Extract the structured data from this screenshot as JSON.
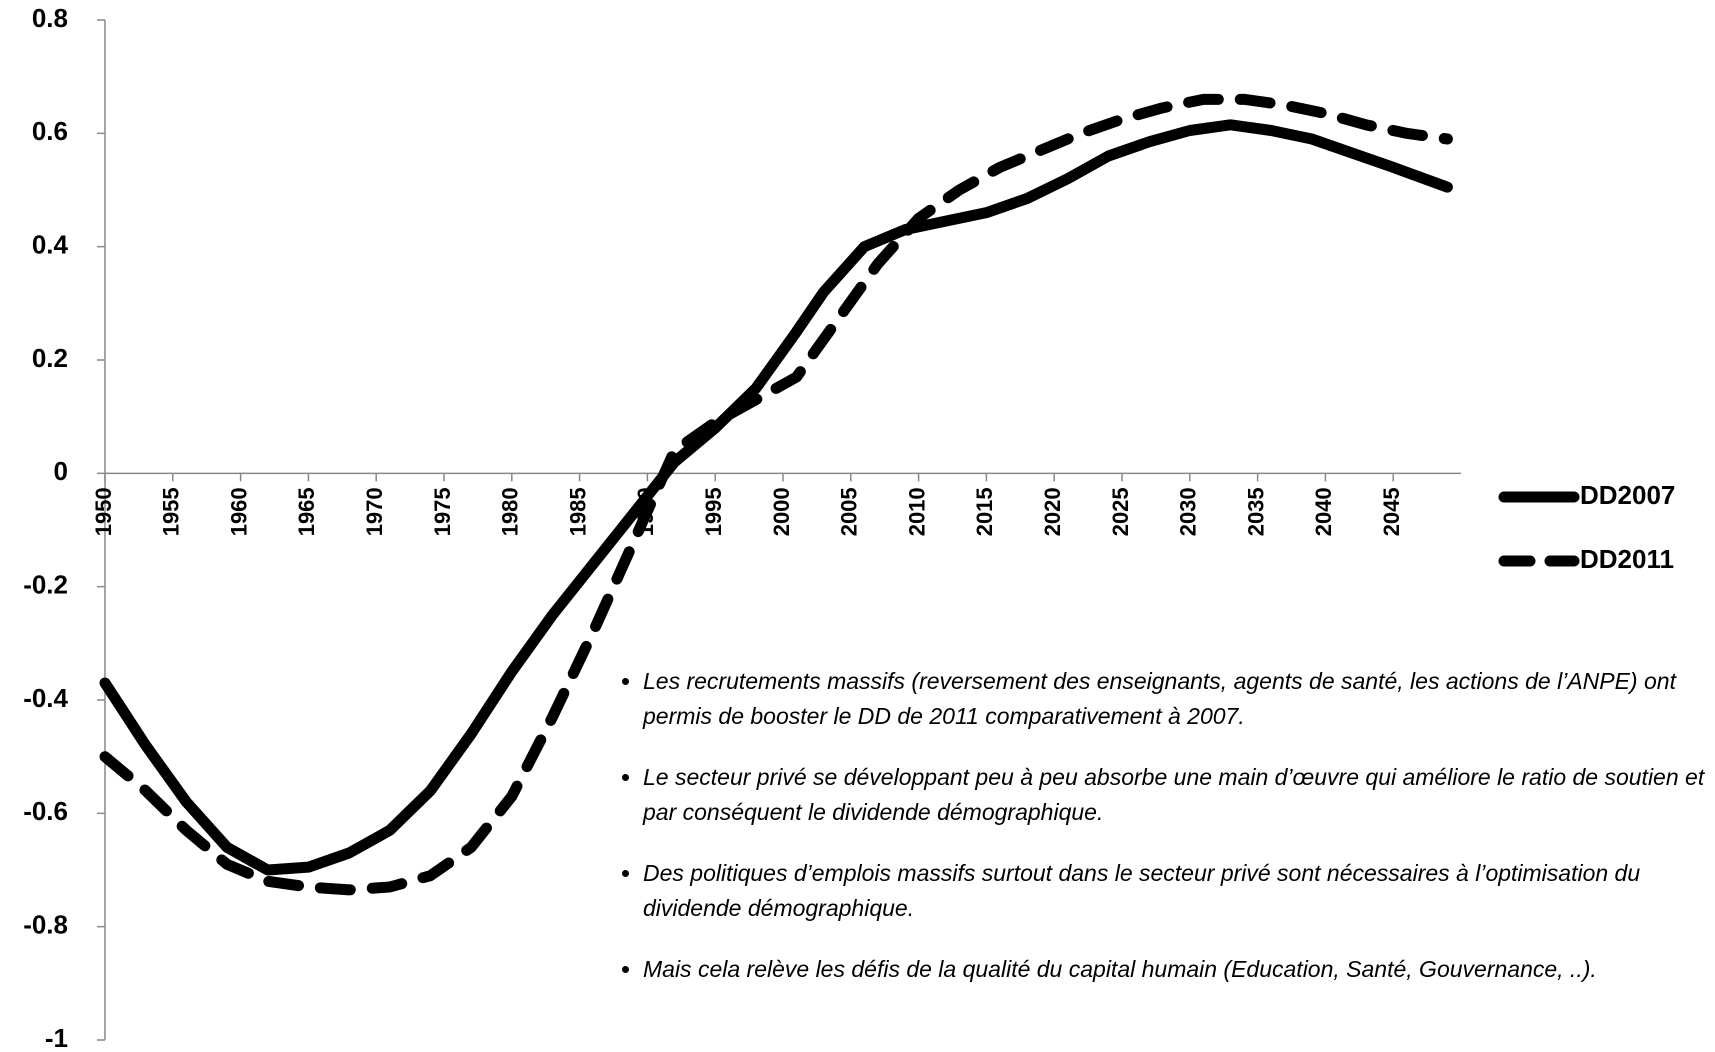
{
  "chart_data": {
    "type": "line",
    "series": [
      {
        "name": "DD2007",
        "color": "#000000",
        "dash": false,
        "x": [
          1950,
          1953,
          1956,
          1959,
          1962,
          1965,
          1968,
          1971,
          1974,
          1977,
          1980,
          1983,
          1986,
          1989,
          1992,
          1995,
          1998,
          2001,
          2003,
          2006,
          2009,
          2012,
          2015,
          2018,
          2021,
          2024,
          2027,
          2030,
          2033,
          2036,
          2039,
          2042,
          2045,
          2049
        ],
        "values": [
          -0.37,
          -0.48,
          -0.58,
          -0.66,
          -0.7,
          -0.695,
          -0.67,
          -0.63,
          -0.56,
          -0.46,
          -0.35,
          -0.25,
          -0.16,
          -0.07,
          0.02,
          0.08,
          0.15,
          0.25,
          0.32,
          0.4,
          0.43,
          0.445,
          0.46,
          0.485,
          0.52,
          0.56,
          0.585,
          0.605,
          0.615,
          0.605,
          0.59,
          0.565,
          0.54,
          0.505
        ]
      },
      {
        "name": "DD2011",
        "color": "#000000",
        "dash": true,
        "x": [
          1950,
          1953,
          1956,
          1959,
          1962,
          1965,
          1968,
          1971,
          1974,
          1977,
          1980,
          1983,
          1986,
          1989,
          1992,
          1995,
          1998,
          2001,
          2004,
          2007,
          2010,
          2013,
          2016,
          2019,
          2022,
          2025,
          2028,
          2031,
          2034,
          2037,
          2040,
          2043,
          2046,
          2049
        ],
        "values": [
          -0.5,
          -0.56,
          -0.63,
          -0.69,
          -0.72,
          -0.73,
          -0.735,
          -0.73,
          -0.71,
          -0.66,
          -0.57,
          -0.43,
          -0.28,
          -0.12,
          0.04,
          0.09,
          0.13,
          0.17,
          0.27,
          0.37,
          0.45,
          0.5,
          0.54,
          0.57,
          0.6,
          0.625,
          0.645,
          0.66,
          0.66,
          0.65,
          0.635,
          0.615,
          0.6,
          0.59
        ]
      }
    ],
    "xlim": [
      1950,
      2050
    ],
    "xticks": [
      1950,
      1955,
      1960,
      1965,
      1970,
      1975,
      1980,
      1985,
      1990,
      1995,
      2000,
      2005,
      2010,
      2015,
      2020,
      2025,
      2030,
      2035,
      2040,
      2045
    ],
    "ylim": [
      -1,
      0.8
    ],
    "yticks": [
      0.8,
      0.6,
      0.4,
      0.2,
      0,
      -0.2,
      -0.4,
      -0.6,
      -0.8,
      -1
    ],
    "legend": "right",
    "annotations": [
      "Les recrutements massifs (reversement des enseignants, agents de santé, les actions de l’ANPE) ont permis de booster le DD de 2011 comparativement à 2007.",
      "Le secteur privé se développant peu à peu absorbe une main d’œuvre qui améliore le ratio de soutien et par conséquent le dividende démographique.",
      "Des politiques d’emplois massifs surtout dans le secteur privé sont nécessaires à l’optimisation du dividende démographique.",
      "Mais cela relève les défis de la qualité du capital humain (Education, Santé, Gouvernance, ..)."
    ]
  }
}
